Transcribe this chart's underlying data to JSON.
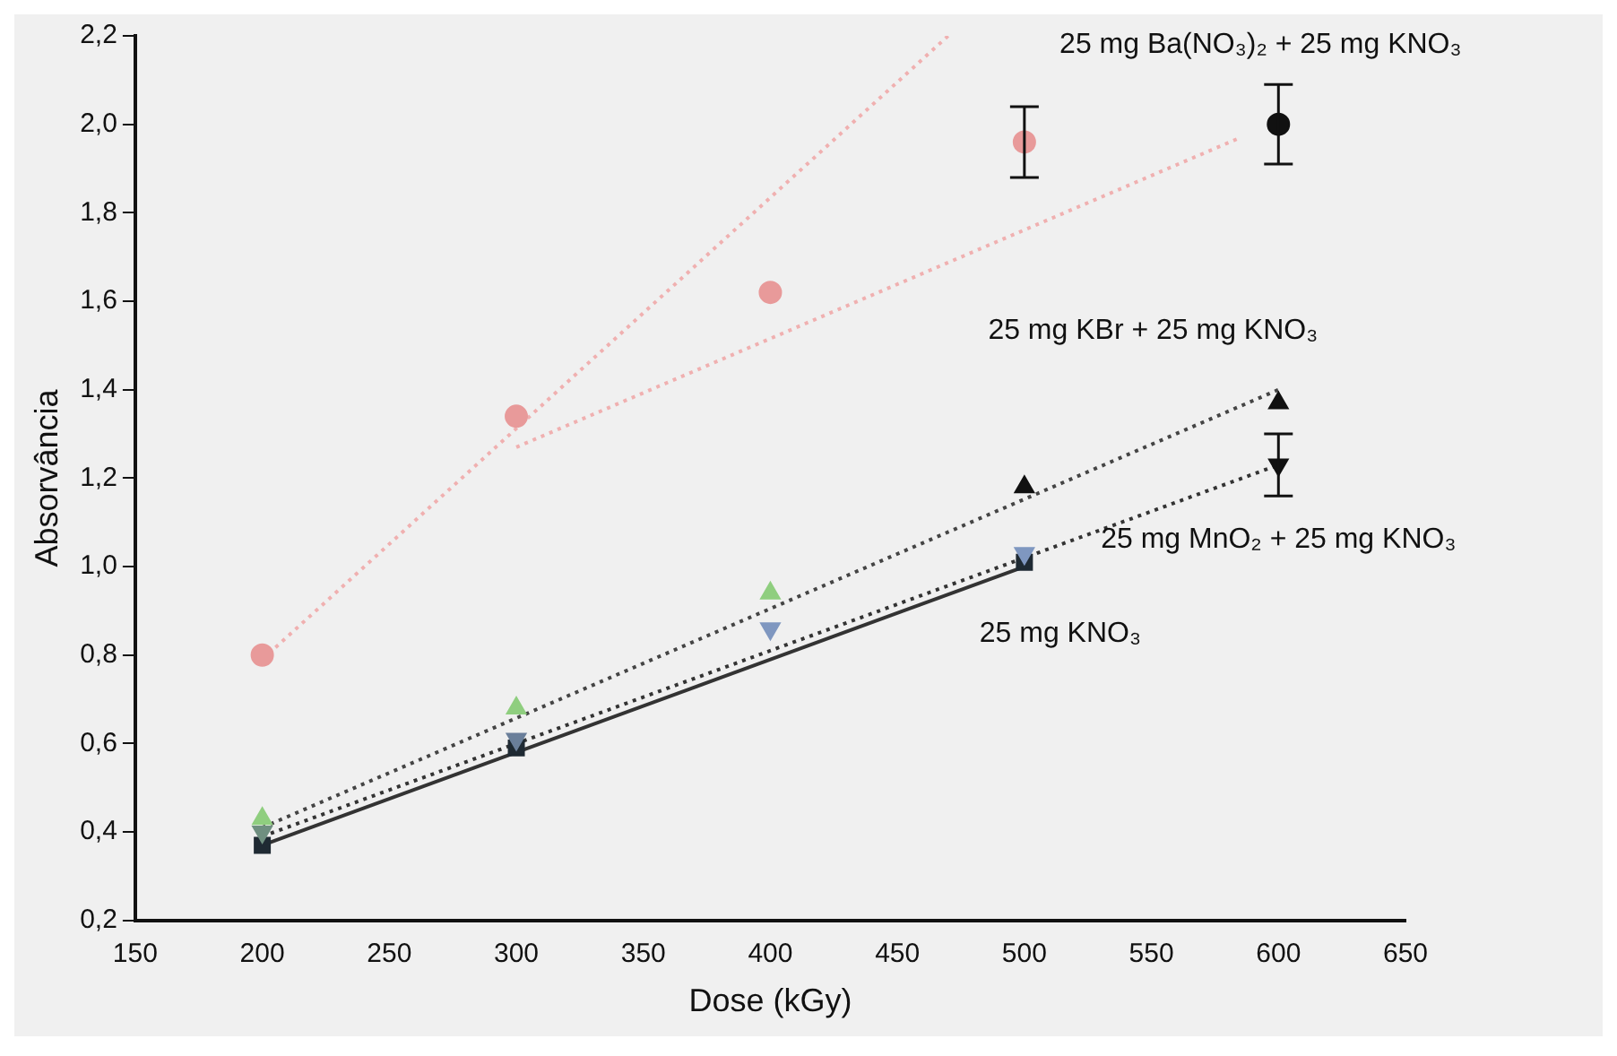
{
  "chart_data": {
    "type": "scatter",
    "xlabel": "Dose (kGy)",
    "ylabel": "Absorvância",
    "xlim": [
      150,
      650
    ],
    "xticks": [
      150,
      200,
      250,
      300,
      350,
      400,
      450,
      500,
      550,
      600,
      650
    ],
    "ylim": [
      0.2,
      2.2
    ],
    "yticks": [
      {
        "value": 0.2,
        "label": "0,2"
      },
      {
        "value": 0.4,
        "label": "0,4"
      },
      {
        "value": 0.6,
        "label": "0,6"
      },
      {
        "value": 0.8,
        "label": "0,8"
      },
      {
        "value": 1.0,
        "label": "1,0"
      },
      {
        "value": 1.2,
        "label": "1,2"
      },
      {
        "value": 1.4,
        "label": "1,4"
      },
      {
        "value": 1.6,
        "label": "1,6"
      },
      {
        "value": 1.8,
        "label": "1,8"
      },
      {
        "value": 2.0,
        "label": "2,0"
      },
      {
        "value": 2.2,
        "label": "2,2"
      }
    ],
    "grid": false,
    "legend": false,
    "series": [
      {
        "name": "25 mg Ba(NO₃)₂ + 25 mg KNO₃",
        "marker": "circle",
        "color": "#e89a9a",
        "colors": [
          "#e89a9a",
          "#e89a9a",
          "#e89a9a",
          "#e89a9a",
          "#111111"
        ],
        "x": [
          200,
          300,
          400,
          500,
          600
        ],
        "values": [
          0.8,
          1.34,
          1.62,
          1.96,
          2.0
        ],
        "errors": [
          null,
          null,
          null,
          0.08,
          0.09
        ]
      },
      {
        "name": "25 mg KBr + 25 mg KNO₃",
        "marker": "triangle",
        "color": "#8fce7f",
        "colors": [
          "#8fce7f",
          "#8fce7f",
          "#8fce7f",
          "#111111",
          "#111111"
        ],
        "x": [
          200,
          300,
          400,
          500,
          600
        ],
        "values": [
          0.43,
          0.68,
          0.94,
          1.18,
          1.37
        ]
      },
      {
        "name": "25 mg MnO₂ + 25 mg KNO₃",
        "marker": "triangle-down",
        "color": "#7f97c0",
        "colors": [
          "#6f8f80",
          "#6a7f9a",
          "#7f97c0",
          "#7f97c0",
          "#111111"
        ],
        "x": [
          200,
          300,
          400,
          500,
          600
        ],
        "values": [
          0.4,
          0.61,
          0.86,
          1.03,
          1.23
        ],
        "errors": [
          null,
          null,
          null,
          null,
          0.07
        ]
      },
      {
        "name": "25 mg KNO₃",
        "marker": "square",
        "color": "#1f2a33",
        "x": [
          200,
          300,
          500
        ],
        "values": [
          0.37,
          0.59,
          1.01
        ]
      },
      {
        "type": "line",
        "marker": "none",
        "line_style": "dotted",
        "color": "#f0b0b0",
        "x": [
          200,
          470
        ],
        "values": [
          0.79,
          2.2
        ]
      },
      {
        "type": "line",
        "marker": "none",
        "line_style": "dotted",
        "color": "#f0b0b0",
        "x": [
          300,
          585
        ],
        "values": [
          1.27,
          1.97
        ]
      },
      {
        "type": "line",
        "marker": "none",
        "line_style": "dotted",
        "color": "#444444",
        "x": [
          200,
          600
        ],
        "values": [
          0.41,
          1.4
        ]
      },
      {
        "type": "line",
        "marker": "none",
        "line_style": "dotted",
        "color": "#333333",
        "x": [
          200,
          600
        ],
        "values": [
          0.39,
          1.23
        ]
      },
      {
        "type": "line",
        "marker": "none",
        "line_style": "solid",
        "color": "#333333",
        "x": [
          200,
          500
        ],
        "values": [
          0.37,
          1.0
        ]
      }
    ]
  }
}
